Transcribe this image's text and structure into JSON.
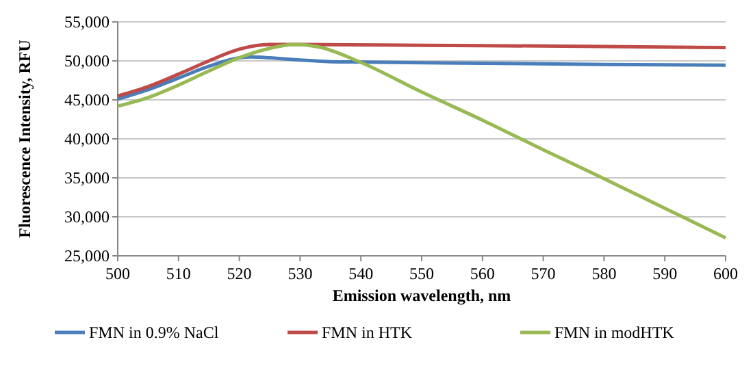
{
  "chart_data": {
    "type": "line",
    "xlabel": "Emission wavelength, nm",
    "ylabel": "Fluorescence Intensity, RFU",
    "xlim": [
      500,
      600
    ],
    "xticks": [
      500,
      510,
      520,
      530,
      540,
      550,
      560,
      570,
      580,
      590,
      600
    ],
    "ylim": [
      25000,
      55000
    ],
    "yticks": [
      {
        "value": 25000,
        "label": "25,000"
      },
      {
        "value": 30000,
        "label": "30,000"
      },
      {
        "value": 35000,
        "label": "35,000"
      },
      {
        "value": 40000,
        "label": "40,000"
      },
      {
        "value": 45000,
        "label": "45,000"
      },
      {
        "value": 50000,
        "label": "50,000"
      },
      {
        "value": 55000,
        "label": "55,000"
      }
    ],
    "grid": "y",
    "legend": "bottom",
    "marker": "none",
    "line_style": "solid",
    "series": [
      {
        "name": "FMN in 0.9% NaCl",
        "color": "#4a7ebb",
        "x": [
          500,
          505,
          510,
          515,
          520,
          522,
          525,
          530,
          535,
          540,
          560,
          580,
          600
        ],
        "values": [
          45100,
          46300,
          47800,
          49300,
          50400,
          50500,
          50400,
          50100,
          49900,
          49850,
          49700,
          49550,
          49450
        ]
      },
      {
        "name": "FMN in HTK",
        "color": "#be4b48",
        "x": [
          500,
          505,
          510,
          515,
          520,
          525,
          530,
          550,
          580,
          600
        ],
        "values": [
          45500,
          46700,
          48300,
          50000,
          51500,
          52100,
          52100,
          52000,
          51850,
          51700
        ]
      },
      {
        "name": "FMN in modHTK",
        "color": "#98b954",
        "x": [
          500,
          505,
          510,
          515,
          520,
          525,
          529,
          533,
          540,
          550,
          560,
          570,
          580,
          590,
          600
        ],
        "values": [
          44200,
          45300,
          46900,
          48700,
          50400,
          51600,
          52100,
          51800,
          49800,
          46000,
          42400,
          38600,
          34900,
          31100,
          27300
        ]
      }
    ]
  }
}
